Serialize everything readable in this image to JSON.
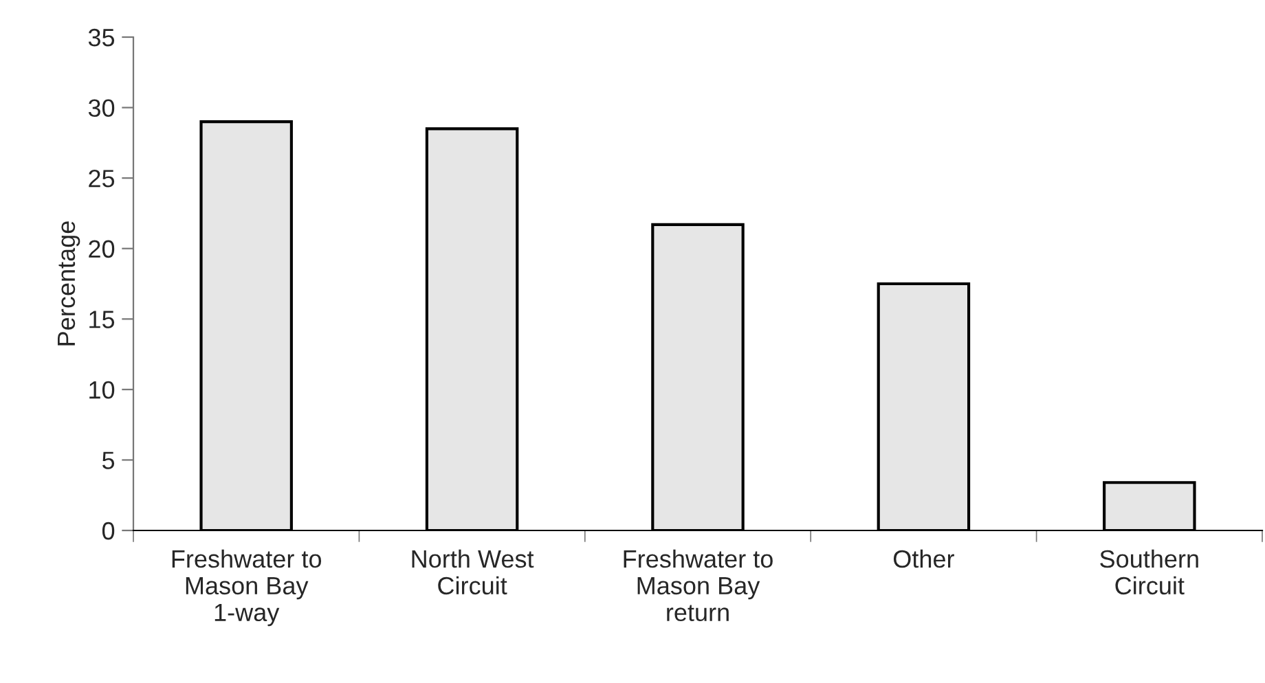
{
  "chart_data": {
    "type": "bar",
    "ylabel": "Percentage",
    "categories": [
      "Freshwater to Mason Bay 1-way",
      "North West Circuit",
      "Freshwater to Mason Bay return",
      "Other",
      "Southern Circuit"
    ],
    "values": [
      29.0,
      28.5,
      21.7,
      17.5,
      3.4
    ],
    "color": "#e6e6e6",
    "ylim": [
      0,
      35
    ],
    "yticks": [
      0,
      5,
      10,
      15,
      20,
      25,
      30,
      35
    ],
    "grid": false
  }
}
